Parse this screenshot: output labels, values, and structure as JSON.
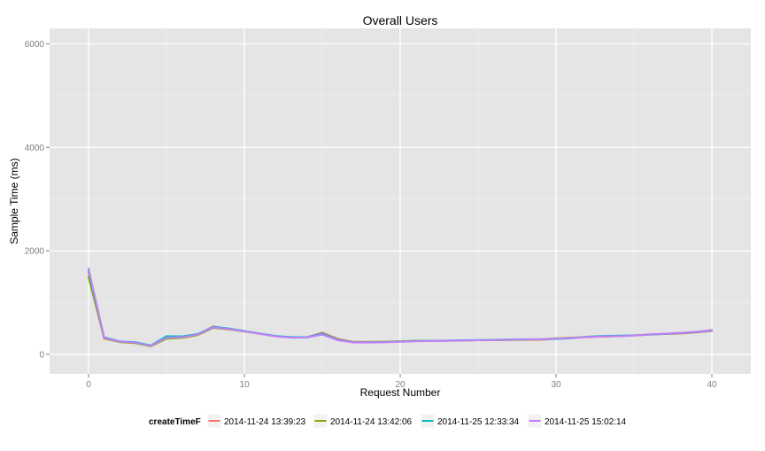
{
  "chart_data": {
    "type": "line",
    "title": "Overall Users",
    "xlabel": "Request Number",
    "ylabel": "Sample Time (ms)",
    "xlim": [
      -2.5,
      42.5
    ],
    "ylim": [
      -380,
      6300
    ],
    "x_ticks": [
      0,
      10,
      20,
      30,
      40
    ],
    "y_ticks": [
      0,
      2000,
      4000,
      6000
    ],
    "grid": true,
    "legend_position": "bottom",
    "legend_title": "createTimeF",
    "x": [
      0,
      1,
      2,
      3,
      4,
      5,
      6,
      7,
      8,
      9,
      10,
      11,
      12,
      13,
      14,
      15,
      16,
      17,
      18,
      19,
      20,
      21,
      22,
      23,
      24,
      25,
      26,
      27,
      28,
      29,
      30,
      31,
      32,
      33,
      34,
      35,
      36,
      37,
      38,
      39,
      40
    ],
    "series": [
      {
        "name": "2014-11-24 13:39:23",
        "color": "#F8766D",
        "values": [
          1580,
          300,
          240,
          220,
          160,
          330,
          320,
          380,
          540,
          490,
          440,
          400,
          350,
          330,
          330,
          420,
          300,
          240,
          240,
          240,
          250,
          260,
          260,
          260,
          270,
          270,
          270,
          280,
          280,
          280,
          300,
          320,
          330,
          340,
          350,
          360,
          380,
          390,
          400,
          420,
          450
        ]
      },
      {
        "name": "2014-11-24 13:42:06",
        "color": "#7CAE00",
        "values": [
          1490,
          310,
          235,
          215,
          155,
          300,
          315,
          370,
          510,
          480,
          440,
          395,
          350,
          325,
          325,
          390,
          280,
          235,
          235,
          240,
          250,
          260,
          260,
          260,
          265,
          270,
          270,
          275,
          280,
          285,
          310,
          320,
          335,
          345,
          350,
          365,
          385,
          395,
          410,
          430,
          470
        ]
      },
      {
        "name": "2014-11-25 12:33:34",
        "color": "#00BFC4",
        "values": [
          1620,
          330,
          250,
          235,
          170,
          350,
          345,
          390,
          530,
          500,
          450,
          400,
          355,
          330,
          330,
          400,
          280,
          230,
          230,
          235,
          245,
          255,
          260,
          265,
          270,
          275,
          280,
          285,
          290,
          290,
          295,
          310,
          340,
          355,
          360,
          365,
          380,
          395,
          410,
          430,
          460
        ]
      },
      {
        "name": "2014-11-25 15:02:14",
        "color": "#C77CFF",
        "values": [
          1660,
          320,
          245,
          225,
          165,
          320,
          330,
          380,
          520,
          490,
          445,
          395,
          345,
          320,
          325,
          380,
          270,
          225,
          225,
          230,
          240,
          250,
          255,
          260,
          265,
          270,
          275,
          280,
          285,
          290,
          300,
          315,
          330,
          345,
          350,
          360,
          385,
          400,
          415,
          435,
          465
        ]
      }
    ]
  }
}
